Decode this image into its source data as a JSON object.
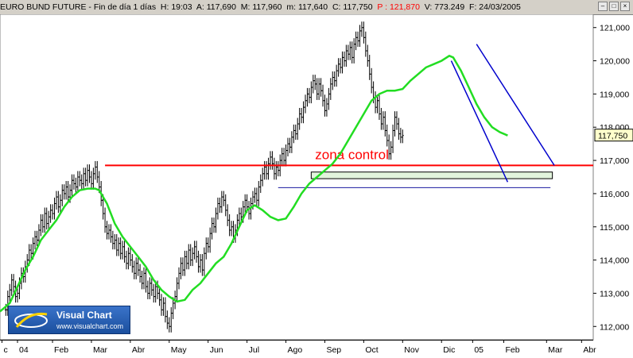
{
  "header": {
    "instrument": "EURO BUND FUTURE",
    "period": "Fin de día 1 días",
    "hour": "H: 19:03",
    "open": "A: 117,690",
    "max": "M: 117,960",
    "min": "m: 117,640",
    "close": "C: 117,750",
    "p": "P : 121,870",
    "volume": "V: 773.249",
    "date": "F: 24/03/2005"
  },
  "window_buttons": [
    "minimize",
    "maximize",
    "close"
  ],
  "logo": {
    "name": "Visual Chart",
    "url": "www.visualchart.com"
  },
  "chart_data": {
    "type": "line",
    "title": "EURO BUND FUTURE",
    "ylim": [
      111.6,
      121.4
    ],
    "y_ticks": [
      "112,000",
      "113,000",
      "114,000",
      "115,000",
      "116,000",
      "117,000",
      "118,000",
      "119,000",
      "120,000",
      "121,000"
    ],
    "y_tick_values": [
      112,
      113,
      114,
      115,
      116,
      117,
      118,
      119,
      120,
      121
    ],
    "last_price_label": "117,750",
    "last_price": 117.75,
    "x_ticks": [
      "c",
      "04",
      "Feb",
      "Mar",
      "Abr",
      "May",
      "Jun",
      "Jul",
      "Ago",
      "Sep",
      "Oct",
      "Nov",
      "Dic",
      "05",
      "Feb",
      "Mar",
      "Abr"
    ],
    "x_tick_index": [
      -2,
      6,
      24,
      44,
      64,
      84,
      104,
      124,
      144,
      164,
      184,
      204,
      224,
      240,
      256,
      278,
      296
    ],
    "x_range": [
      -3,
      302
    ],
    "price": [
      112.5,
      112.9,
      113.1,
      113.4,
      113.2,
      112.9,
      113.0,
      113.3,
      113.6,
      113.5,
      113.8,
      114.0,
      114.3,
      114.2,
      114.5,
      114.7,
      114.6,
      114.9,
      115.2,
      115.0,
      115.4,
      115.1,
      115.3,
      115.5,
      115.4,
      115.7,
      115.9,
      115.6,
      115.8,
      116.1,
      116.0,
      116.2,
      115.9,
      116.1,
      116.4,
      116.3,
      116.2,
      116.5,
      116.4,
      116.3,
      116.6,
      116.4,
      116.7,
      116.5,
      116.3,
      116.6,
      116.8,
      116.5,
      116.2,
      115.8,
      115.4,
      115.0,
      114.8,
      114.9,
      114.7,
      114.5,
      114.6,
      114.3,
      114.5,
      114.2,
      114.4,
      114.1,
      113.9,
      114.2,
      114.0,
      113.8,
      113.6,
      113.9,
      113.7,
      113.5,
      113.3,
      113.6,
      113.2,
      113.0,
      113.3,
      113.1,
      112.9,
      113.2,
      113.0,
      112.8,
      112.5,
      112.7,
      112.3,
      112.1,
      112.0,
      112.4,
      112.7,
      112.9,
      113.3,
      113.6,
      113.9,
      113.7,
      114.1,
      113.9,
      114.3,
      114.0,
      114.2,
      114.4,
      114.1,
      113.8,
      114.0,
      113.7,
      114.2,
      114.5,
      114.4,
      114.8,
      115.1,
      115.0,
      115.4,
      115.7,
      115.6,
      115.9,
      115.8,
      115.5,
      115.2,
      114.9,
      115.0,
      114.7,
      114.9,
      115.2,
      115.4,
      115.3,
      115.6,
      115.8,
      115.6,
      115.4,
      115.7,
      115.9,
      116.0,
      115.8,
      116.2,
      116.4,
      116.6,
      116.8,
      116.6,
      116.9,
      117.1,
      116.9,
      116.6,
      116.8,
      116.7,
      117.0,
      117.2,
      117.0,
      117.3,
      117.5,
      117.4,
      117.7,
      117.9,
      117.8,
      118.1,
      118.4,
      118.3,
      118.6,
      118.8,
      119.0,
      118.9,
      119.2,
      119.4,
      119.3,
      119.0,
      119.3,
      119.1,
      118.8,
      118.5,
      118.7,
      119.0,
      119.3,
      119.5,
      119.4,
      119.7,
      119.9,
      119.8,
      120.1,
      120.0,
      120.3,
      120.2,
      120.4,
      120.1,
      120.5,
      120.7,
      120.6,
      120.9,
      121.0,
      120.7,
      120.3,
      120.0,
      119.6,
      119.2,
      118.9,
      118.6,
      118.8,
      118.4,
      118.1,
      118.3,
      117.9,
      117.6,
      117.2,
      117.4,
      117.9,
      118.3,
      118.1,
      117.8,
      117.7,
      117.75
    ],
    "moving_average": [
      [
        -3,
        112.45
      ],
      [
        2,
        112.7
      ],
      [
        6,
        113.2
      ],
      [
        10,
        113.7
      ],
      [
        14,
        114.1
      ],
      [
        18,
        114.6
      ],
      [
        22,
        114.9
      ],
      [
        26,
        115.2
      ],
      [
        30,
        115.6
      ],
      [
        34,
        115.9
      ],
      [
        38,
        116.1
      ],
      [
        42,
        116.15
      ],
      [
        46,
        116.15
      ],
      [
        48,
        116.1
      ],
      [
        52,
        115.7
      ],
      [
        56,
        115.1
      ],
      [
        60,
        114.7
      ],
      [
        64,
        114.4
      ],
      [
        68,
        114.1
      ],
      [
        72,
        113.8
      ],
      [
        76,
        113.4
      ],
      [
        80,
        113.1
      ],
      [
        84,
        112.9
      ],
      [
        88,
        112.75
      ],
      [
        92,
        112.8
      ],
      [
        96,
        113.1
      ],
      [
        100,
        113.3
      ],
      [
        104,
        113.6
      ],
      [
        108,
        113.9
      ],
      [
        112,
        114.1
      ],
      [
        116,
        114.5
      ],
      [
        120,
        115.0
      ],
      [
        124,
        115.5
      ],
      [
        128,
        115.65
      ],
      [
        132,
        115.5
      ],
      [
        136,
        115.3
      ],
      [
        140,
        115.2
      ],
      [
        144,
        115.25
      ],
      [
        148,
        115.6
      ],
      [
        152,
        116.0
      ],
      [
        156,
        116.3
      ],
      [
        160,
        116.5
      ],
      [
        164,
        116.7
      ],
      [
        168,
        116.9
      ],
      [
        172,
        117.2
      ],
      [
        176,
        117.6
      ],
      [
        180,
        118.0
      ],
      [
        184,
        118.4
      ],
      [
        188,
        118.8
      ],
      [
        192,
        119.0
      ],
      [
        196,
        119.1
      ],
      [
        200,
        119.1
      ],
      [
        204,
        119.15
      ],
      [
        208,
        119.4
      ],
      [
        212,
        119.6
      ],
      [
        216,
        119.8
      ],
      [
        220,
        119.9
      ],
      [
        224,
        120.0
      ],
      [
        228,
        120.15
      ],
      [
        230,
        120.1
      ],
      [
        234,
        119.7
      ],
      [
        238,
        119.2
      ],
      [
        242,
        118.7
      ],
      [
        246,
        118.3
      ],
      [
        250,
        118.0
      ],
      [
        254,
        117.85
      ],
      [
        258,
        117.75
      ]
    ],
    "control_zone_line": {
      "price": 116.85,
      "x_start": 51,
      "x_end": 302,
      "label": "zona control"
    },
    "support_line": {
      "price": 116.18,
      "x_start": 140,
      "x_end": 280
    },
    "band": {
      "low": 116.45,
      "high": 116.65,
      "x_start": 157,
      "x_end": 281
    },
    "channel_upper": [
      [
        242,
        120.5
      ],
      [
        282,
        116.85
      ]
    ],
    "channel_lower": [
      [
        229,
        120.0
      ],
      [
        258,
        116.35
      ]
    ]
  }
}
